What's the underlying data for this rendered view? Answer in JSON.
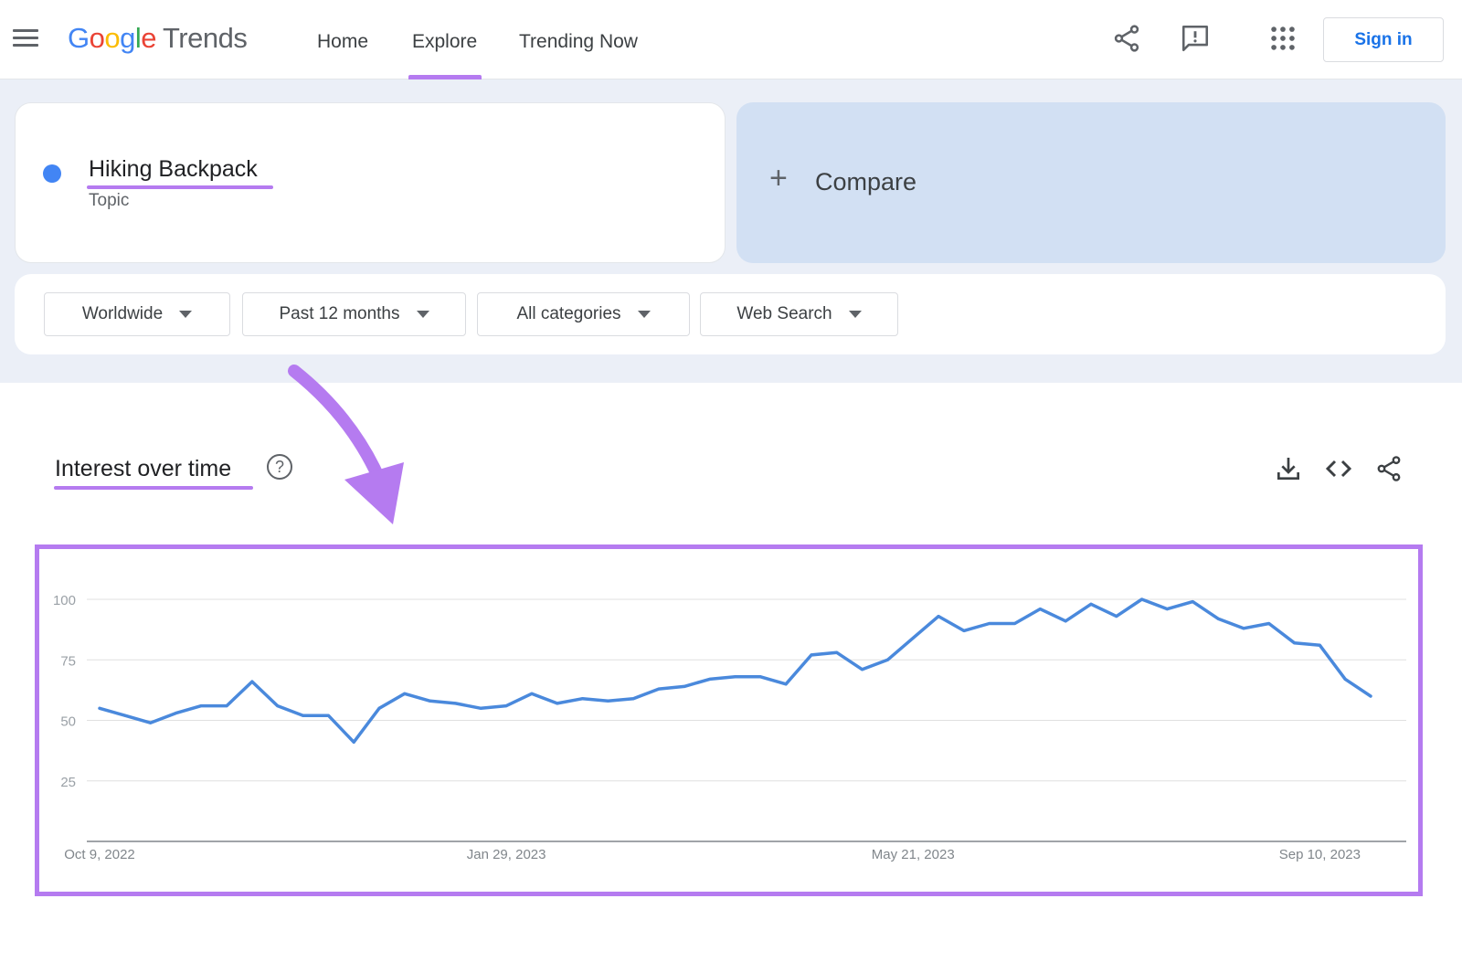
{
  "header": {
    "logo": {
      "letters": [
        "G",
        "o",
        "o",
        "g",
        "l",
        "e"
      ],
      "product": "Trends"
    },
    "nav": [
      {
        "label": "Home",
        "active": false
      },
      {
        "label": "Explore",
        "active": true
      },
      {
        "label": "Trending Now",
        "active": false
      }
    ],
    "icons": [
      "share-icon",
      "feedback-icon",
      "apps-icon"
    ],
    "sign_in_label": "Sign in"
  },
  "search_term": {
    "name": "Hiking Backpack",
    "type": "Topic",
    "color": "#4285f4"
  },
  "compare": {
    "plus": "+",
    "label": "Compare"
  },
  "filters": [
    {
      "label": "Worldwide"
    },
    {
      "label": "Past 12 months"
    },
    {
      "label": "All categories"
    },
    {
      "label": "Web Search"
    }
  ],
  "interest_section": {
    "title": "Interest over time",
    "help": "?",
    "actions": [
      "download-icon",
      "embed-icon",
      "share-icon"
    ]
  },
  "colors": {
    "accent": "#b57bf0",
    "series": "#4a89dc",
    "link": "#1a73e8"
  },
  "chart_data": {
    "type": "line",
    "title": "",
    "xlabel": "",
    "ylabel": "",
    "ylim": [
      0,
      100
    ],
    "yticks": [
      25,
      50,
      75,
      100
    ],
    "xtick_labels": [
      "Oct 9, 2022",
      "Jan 29, 2023",
      "May 21, 2023",
      "Sep 10, 2023"
    ],
    "xtick_indices": [
      0,
      16,
      32,
      48
    ],
    "grid": true,
    "series": [
      {
        "name": "",
        "values": [
          55,
          52,
          49,
          53,
          56,
          56,
          66,
          56,
          52,
          52,
          41,
          55,
          61,
          58,
          57,
          55,
          56,
          61,
          57,
          59,
          58,
          59,
          63,
          64,
          67,
          68,
          68,
          65,
          77,
          78,
          71,
          75,
          84,
          93,
          87,
          90,
          90,
          96,
          91,
          98,
          93,
          100,
          96,
          99,
          92,
          88,
          90,
          82,
          81,
          67,
          60
        ]
      }
    ]
  }
}
